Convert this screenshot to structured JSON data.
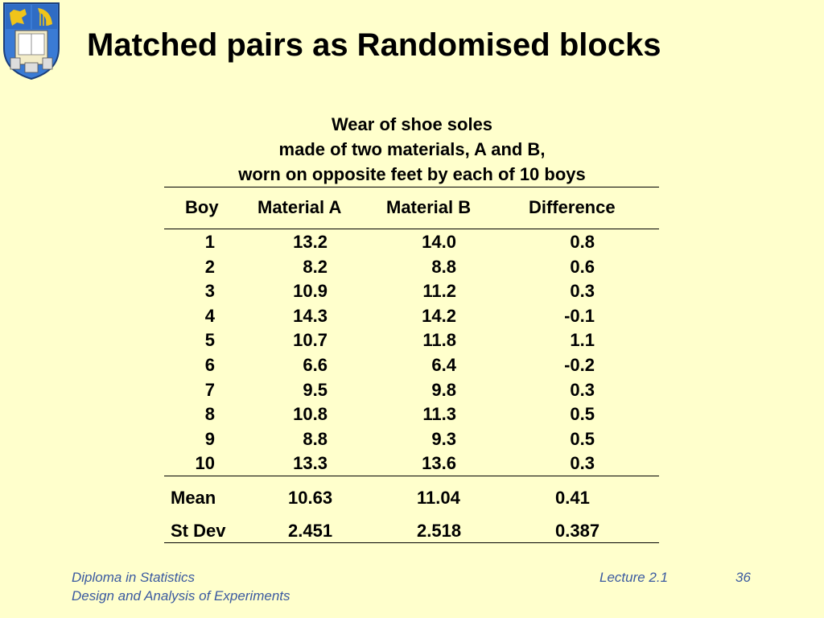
{
  "title": "Matched pairs as Randomised blocks",
  "caption": {
    "line1": "Wear of shoe soles",
    "line2": "made of two materials, A and B,",
    "line3": "worn on opposite feet by each of 10 boys"
  },
  "table": {
    "headers": [
      "Boy",
      "Material A",
      "Material B",
      "Difference"
    ],
    "rows": [
      [
        "1",
        "13.2",
        "14.0",
        "0.8"
      ],
      [
        "2",
        "8.2",
        "8.8",
        "0.6"
      ],
      [
        "3",
        "10.9",
        "11.2",
        "0.3"
      ],
      [
        "4",
        "14.3",
        "14.2",
        "-0.1"
      ],
      [
        "5",
        "10.7",
        "11.8",
        "1.1"
      ],
      [
        "6",
        "6.6",
        "6.4",
        "-0.2"
      ],
      [
        "7",
        "9.5",
        "9.8",
        "0.3"
      ],
      [
        "8",
        "10.8",
        "11.3",
        "0.5"
      ],
      [
        "9",
        "8.8",
        "9.3",
        "0.5"
      ],
      [
        "10",
        "13.3",
        "13.6",
        "0.3"
      ]
    ],
    "summary": [
      [
        "Mean",
        "10.63",
        "11.04",
        "0.41"
      ],
      [
        "St Dev",
        "2.451",
        "2.518",
        "0.387"
      ]
    ]
  },
  "footer": {
    "course": "Diploma in Statistics",
    "module": "Design and Analysis of Experiments",
    "lecture": "Lecture 2.1",
    "page": "36"
  },
  "colors": {
    "background": "#ffffcc",
    "footer_text": "#3b5aa0",
    "crest_blue": "#3a7bd5"
  }
}
